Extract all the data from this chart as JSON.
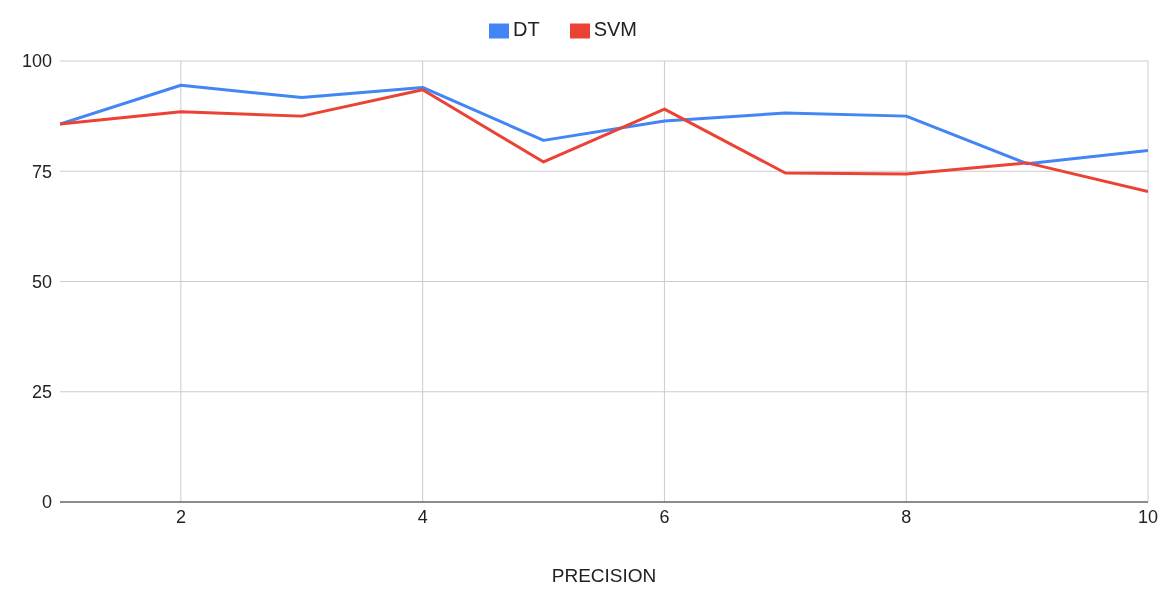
{
  "chart_data": {
    "type": "line",
    "xlabel": "PRECISION",
    "x": [
      1,
      2,
      3,
      4,
      5,
      6,
      7,
      8,
      9,
      10
    ],
    "series": [
      {
        "name": "DT",
        "color": "#4285f4",
        "values": [
          85.7,
          94.5,
          91.7,
          94.0,
          82.0,
          86.4,
          88.2,
          87.5,
          76.7,
          79.7
        ]
      },
      {
        "name": "SVM",
        "color": "#ea4335",
        "values": [
          85.7,
          88.5,
          87.5,
          93.5,
          77.1,
          89.1,
          74.6,
          74.4,
          76.9,
          70.4
        ]
      }
    ],
    "xlim": [
      1,
      10
    ],
    "xticks": [
      2,
      4,
      6,
      8,
      10
    ],
    "ylim": [
      0,
      100
    ],
    "yticks": [
      0,
      25,
      50,
      75,
      100
    ],
    "grid": true,
    "legend": "top"
  }
}
